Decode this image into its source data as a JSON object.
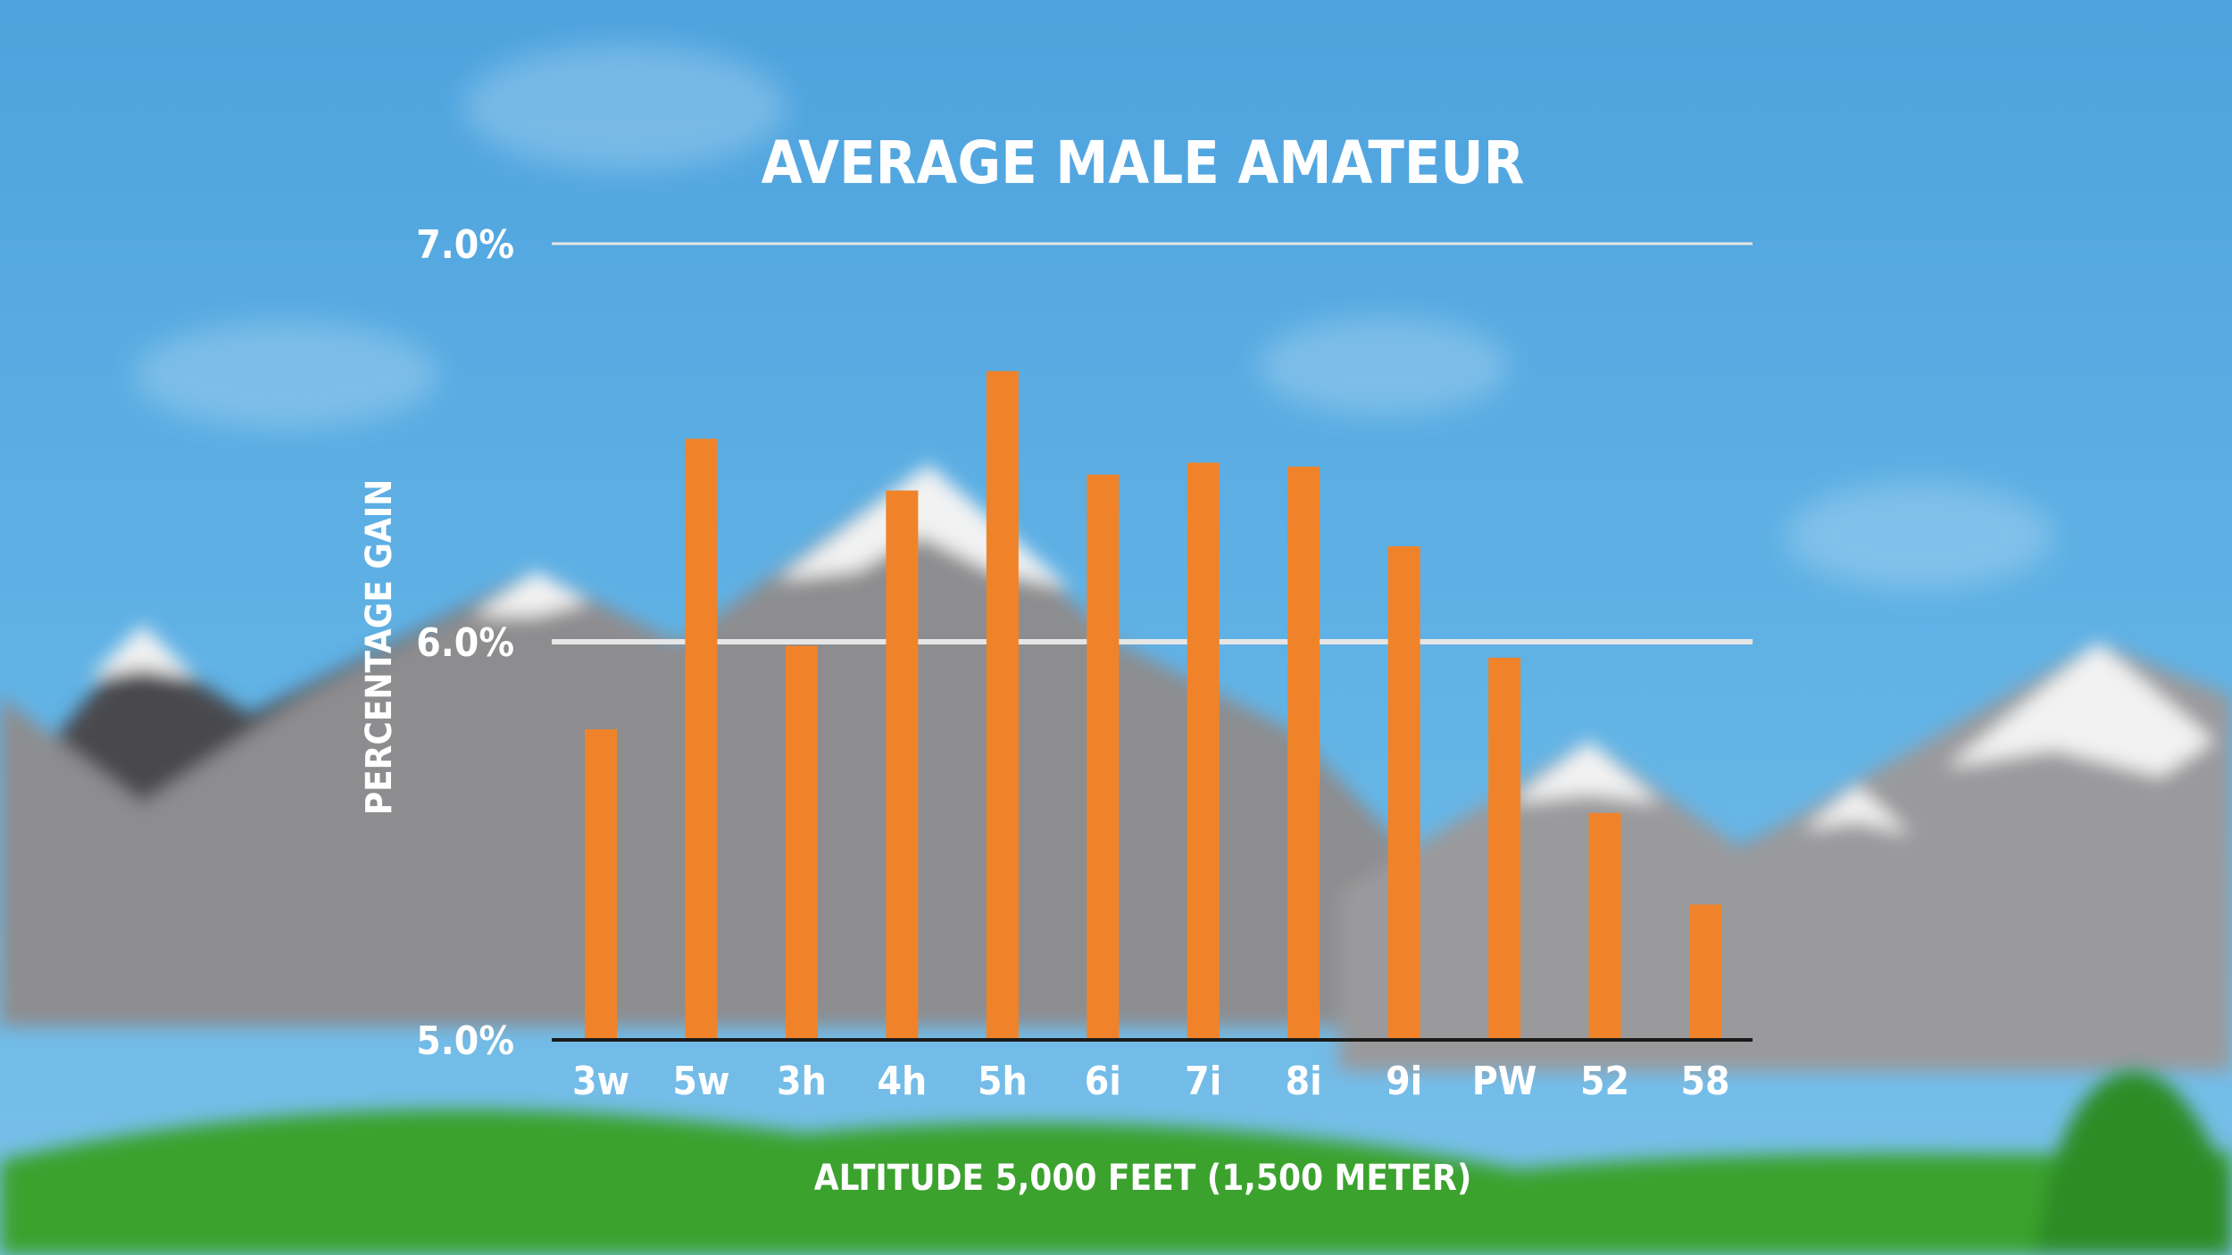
{
  "chart_data": {
    "type": "bar",
    "title": "AVERAGE MALE AMATEUR",
    "xlabel": "ALTITUDE 5,000 FEET (1,500 METER)",
    "ylabel": "PERCENTAGE GAIN",
    "categories": [
      "3w",
      "5w",
      "3h",
      "4h",
      "5h",
      "6i",
      "7i",
      "8i",
      "9i",
      "PW",
      "52",
      "58"
    ],
    "values": [
      5.78,
      6.51,
      5.99,
      6.38,
      6.68,
      6.42,
      6.45,
      6.44,
      6.24,
      5.96,
      5.57,
      5.34
    ],
    "ylim": [
      5.0,
      7.0
    ],
    "yticks": [
      "5.0%",
      "6.0%",
      "7.0%"
    ],
    "ytick_values": [
      5.0,
      6.0,
      7.0
    ],
    "grid": true,
    "colors": {
      "bar": "#f0832a",
      "sky": "#4fa6e0",
      "text": "#ffffff",
      "grass": "#3aa22e",
      "mountain": "#8c8c8c",
      "snow": "#f2f2f2"
    }
  }
}
